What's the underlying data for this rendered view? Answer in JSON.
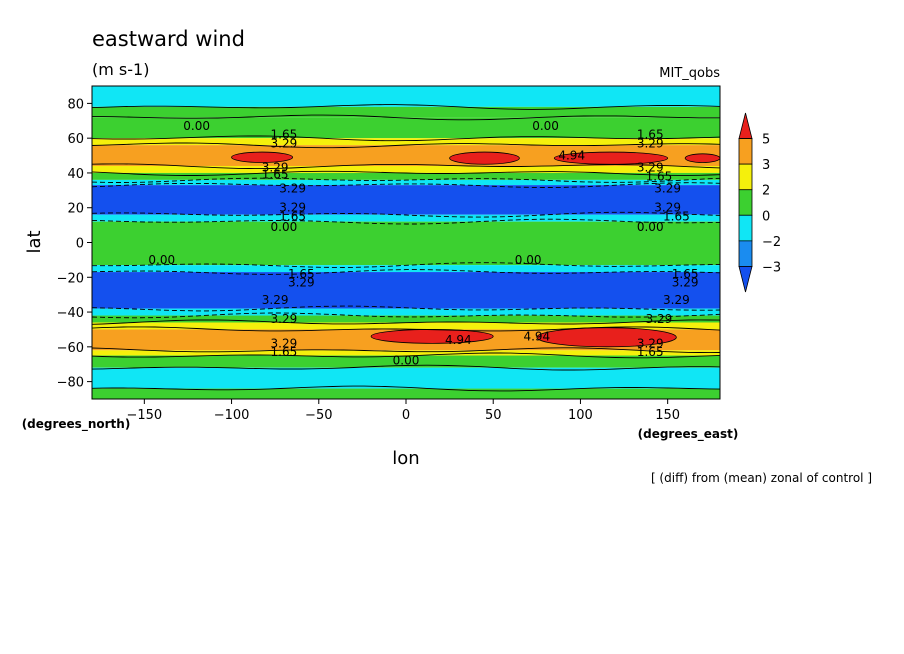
{
  "chart_data": {
    "type": "heatmap",
    "title": "eastward wind",
    "subtitle": "(m s-1)",
    "model_label": "MIT_qobs",
    "footnote": "[ (diff) from (mean) zonal of control ]",
    "xlabel": "lon",
    "ylabel": "lat",
    "x_units": "(degrees_east)",
    "y_units": "(degrees_north)",
    "xlim": [
      -180,
      180
    ],
    "ylim": [
      -90,
      90
    ],
    "x_ticks": [
      -150,
      -100,
      -50,
      0,
      50,
      100,
      150
    ],
    "y_ticks": [
      80,
      60,
      40,
      20,
      0,
      -20,
      -40,
      -60,
      -80
    ],
    "legend": {
      "position": "right",
      "levels": [
        "5",
        "3",
        "2",
        "0",
        "-2",
        "-3"
      ],
      "colors": [
        "#e8201c",
        "#f7a020",
        "#f5f00c",
        "#3cd030",
        "#10e6f5",
        "#1a8cf0",
        "#1450ee"
      ]
    },
    "bands": [
      {
        "lat_from": 90,
        "lat_to": 78,
        "color": "#10e6f5"
      },
      {
        "lat_from": 78,
        "lat_to": 72,
        "color": "#3cd030"
      },
      {
        "lat_from": 72,
        "lat_to": 60,
        "color": "#3cd030"
      },
      {
        "lat_from": 60,
        "lat_to": 56,
        "color": "#f5f00c"
      },
      {
        "lat_from": 56,
        "lat_to": 44,
        "color": "#f7a020"
      },
      {
        "lat_from": 44,
        "lat_to": 40,
        "color": "#f5f00c"
      },
      {
        "lat_from": 40,
        "lat_to": 36,
        "color": "#3cd030"
      },
      {
        "lat_from": 36,
        "lat_to": 33,
        "color": "#10e6f5"
      },
      {
        "lat_from": 33,
        "lat_to": 16,
        "color": "#1450ee"
      },
      {
        "lat_from": 16,
        "lat_to": 12,
        "color": "#10e6f5"
      },
      {
        "lat_from": 12,
        "lat_to": -13,
        "color": "#3cd030"
      },
      {
        "lat_from": -13,
        "lat_to": -17,
        "color": "#10e6f5"
      },
      {
        "lat_from": -17,
        "lat_to": -38,
        "color": "#1450ee"
      },
      {
        "lat_from": -38,
        "lat_to": -42,
        "color": "#10e6f5"
      },
      {
        "lat_from": -42,
        "lat_to": -46,
        "color": "#3cd030"
      },
      {
        "lat_from": -46,
        "lat_to": -50,
        "color": "#f5f00c"
      },
      {
        "lat_from": -50,
        "lat_to": -62,
        "color": "#f7a020"
      },
      {
        "lat_from": -62,
        "lat_to": -65,
        "color": "#f5f00c"
      },
      {
        "lat_from": -65,
        "lat_to": -72,
        "color": "#3cd030"
      },
      {
        "lat_from": -72,
        "lat_to": -84,
        "color": "#10e6f5"
      },
      {
        "lat_from": -84,
        "lat_to": -90,
        "color": "#3cd030"
      }
    ],
    "red_cells": [
      {
        "lon": [
          -100,
          -65
        ],
        "lat": [
          46,
          52
        ]
      },
      {
        "lon": [
          25,
          65
        ],
        "lat": [
          45,
          52
        ]
      },
      {
        "lon": [
          85,
          150
        ],
        "lat": [
          45,
          52
        ]
      },
      {
        "lon": [
          160,
          180
        ],
        "lat": [
          46,
          51
        ]
      },
      {
        "lon": [
          -20,
          50
        ],
        "lat": [
          -58,
          -50
        ]
      },
      {
        "lon": [
          75,
          155
        ],
        "lat": [
          -60,
          -49
        ]
      }
    ],
    "contour_labels": [
      {
        "text": "0.00",
        "lon": -120,
        "lat": 67
      },
      {
        "text": "0.00",
        "lon": 80,
        "lat": 67
      },
      {
        "text": "1.65",
        "lon": -70,
        "lat": 62
      },
      {
        "text": "3.29",
        "lon": -70,
        "lat": 57
      },
      {
        "text": "1.65",
        "lon": 140,
        "lat": 62
      },
      {
        "text": "3.29",
        "lon": 140,
        "lat": 57
      },
      {
        "text": "4.94",
        "lon": 95,
        "lat": 50
      },
      {
        "text": "3.29",
        "lon": -75,
        "lat": 43
      },
      {
        "text": "1.65",
        "lon": -75,
        "lat": 39
      },
      {
        "text": "3.29",
        "lon": 140,
        "lat": 43
      },
      {
        "text": "1.65",
        "lon": 145,
        "lat": 38
      },
      {
        "text": "3.29",
        "lon": -65,
        "lat": 31
      },
      {
        "text": "3.29",
        "lon": 150,
        "lat": 31
      },
      {
        "text": "3.29",
        "lon": -65,
        "lat": 20
      },
      {
        "text": "1.65",
        "lon": -65,
        "lat": 15
      },
      {
        "text": "3.29",
        "lon": 150,
        "lat": 20
      },
      {
        "text": "1.65",
        "lon": 155,
        "lat": 15
      },
      {
        "text": "0.00",
        "lon": -70,
        "lat": 9
      },
      {
        "text": "0.00",
        "lon": 140,
        "lat": 9
      },
      {
        "text": "0.00",
        "lon": -140,
        "lat": -10
      },
      {
        "text": "0.00",
        "lon": 70,
        "lat": -10
      },
      {
        "text": "1.65",
        "lon": -60,
        "lat": -18
      },
      {
        "text": "3.29",
        "lon": -60,
        "lat": -23
      },
      {
        "text": "1.65",
        "lon": 160,
        "lat": -18
      },
      {
        "text": "3.29",
        "lon": 160,
        "lat": -23
      },
      {
        "text": "3.29",
        "lon": -75,
        "lat": -33
      },
      {
        "text": "3.29",
        "lon": 155,
        "lat": -33
      },
      {
        "text": "3.29",
        "lon": -70,
        "lat": -44
      },
      {
        "text": "3.29",
        "lon": 145,
        "lat": -44
      },
      {
        "text": "4.94",
        "lon": 30,
        "lat": -56
      },
      {
        "text": "4.94",
        "lon": 75,
        "lat": -54
      },
      {
        "text": "3.29",
        "lon": -70,
        "lat": -58
      },
      {
        "text": "1.65",
        "lon": -70,
        "lat": -63
      },
      {
        "text": "3.29",
        "lon": 140,
        "lat": -58
      },
      {
        "text": "1.65",
        "lon": 140,
        "lat": -63
      },
      {
        "text": "0.00",
        "lon": 0,
        "lat": -68
      }
    ],
    "grid": false
  }
}
